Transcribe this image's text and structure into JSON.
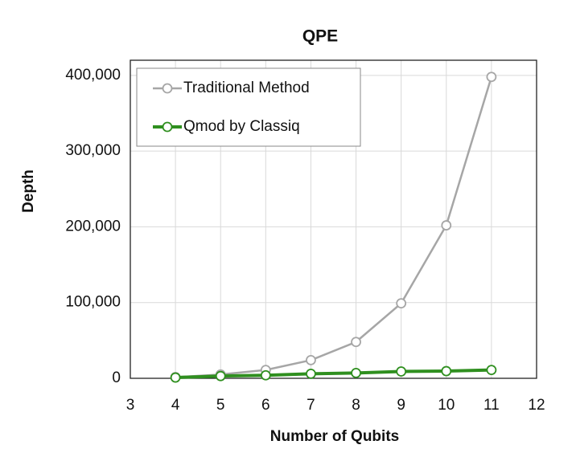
{
  "chart_data": {
    "type": "line",
    "title": "QPE",
    "x_label": "Number of Qubits",
    "y_label": "Depth",
    "x": [
      4,
      5,
      6,
      7,
      8,
      9,
      10,
      11
    ],
    "series": [
      {
        "name": "Traditional Method",
        "color": "#a6a6a6",
        "values": [
          1500,
          5000,
          11000,
          24000,
          48000,
          99000,
          202000,
          398000
        ]
      },
      {
        "name": "Qmod by Classiq",
        "color": "#2f8f1f",
        "values": [
          1000,
          3000,
          4000,
          6000,
          7000,
          9000,
          9500,
          11000
        ]
      }
    ],
    "xlim": [
      3,
      12
    ],
    "xticks": [
      3,
      4,
      5,
      6,
      7,
      8,
      9,
      10,
      11,
      12
    ],
    "ylim": [
      0,
      420000
    ],
    "yticks": [
      0,
      {
        "value": 100000,
        "label": "100,000"
      },
      {
        "value": 200000,
        "label": "200,000"
      },
      {
        "value": 300000,
        "label": "300,000"
      },
      {
        "value": 400000,
        "label": "400,000"
      }
    ],
    "grid": true,
    "legend": "upper-left"
  }
}
